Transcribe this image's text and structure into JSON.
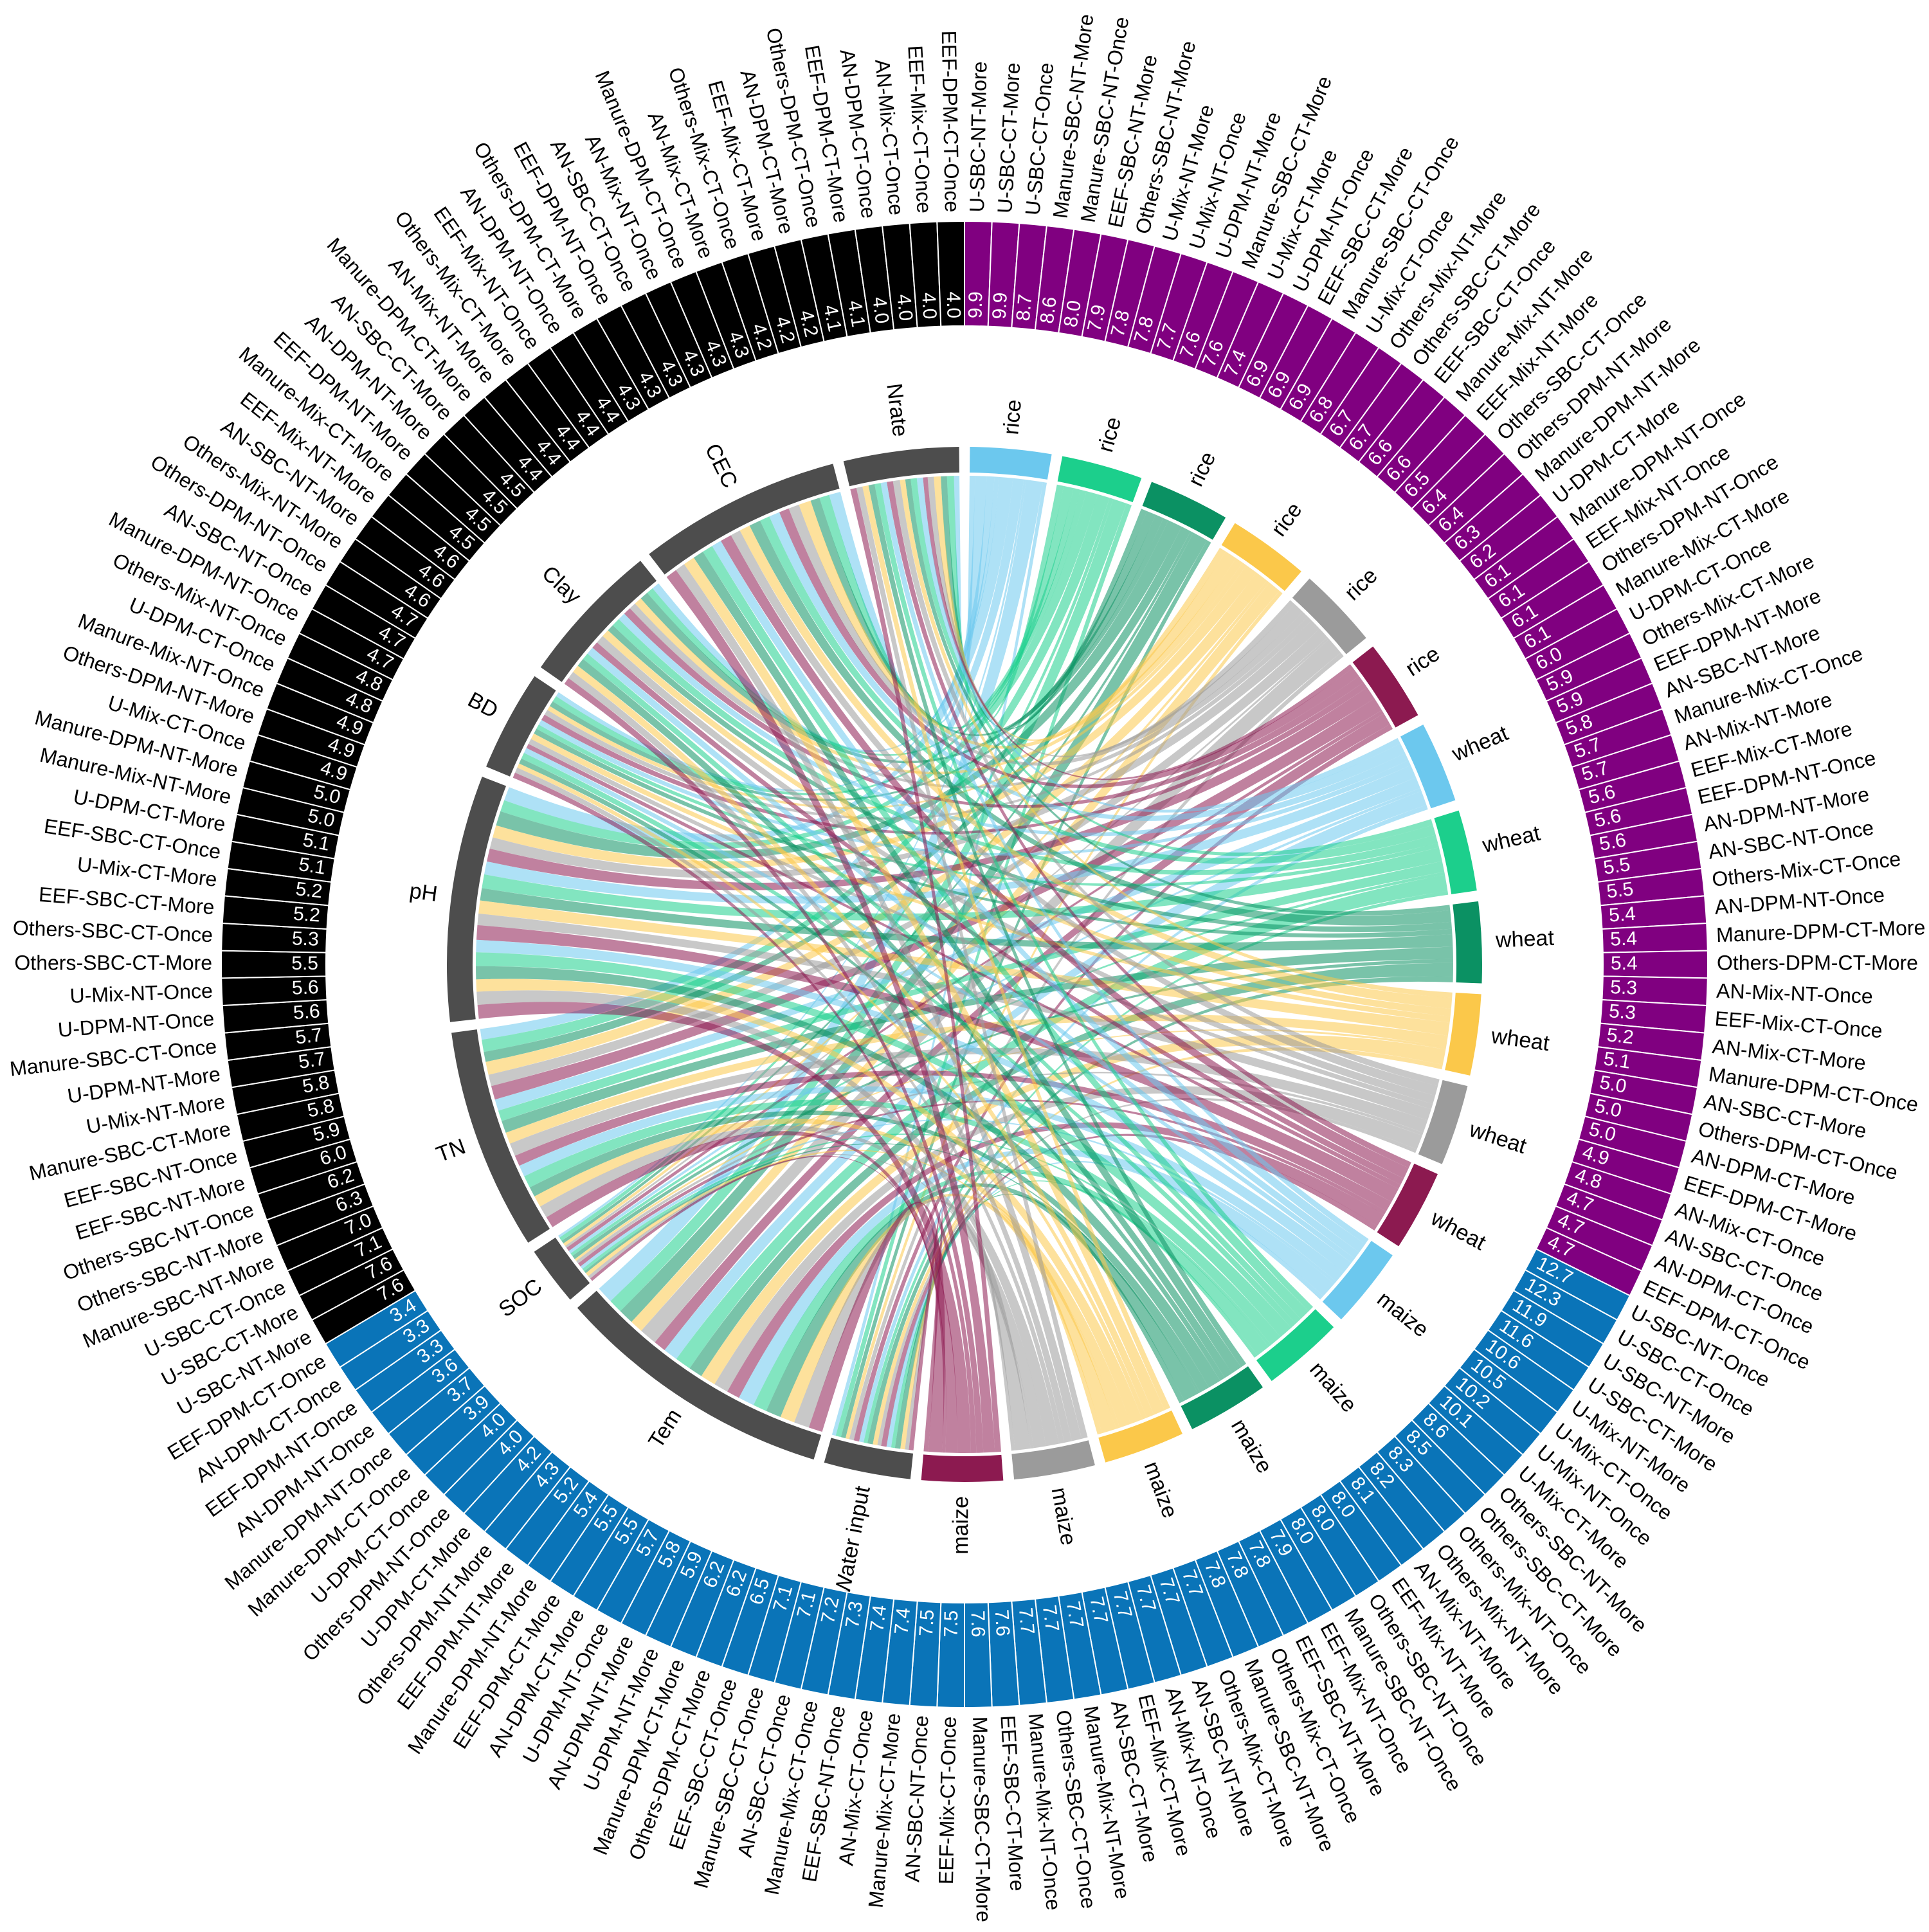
{
  "chart_data": {
    "type": "chord",
    "crops": [
      {
        "name": "rice",
        "color": "#6cc8ee"
      },
      {
        "name": "rice",
        "color": "#1ccf8c"
      },
      {
        "name": "rice",
        "color": "#0b9163"
      },
      {
        "name": "rice",
        "color": "#fbc84a"
      },
      {
        "name": "rice",
        "color": "#9b9b9b"
      },
      {
        "name": "rice",
        "color": "#8c1a50"
      },
      {
        "name": "wheat",
        "color": "#6cc8ee"
      },
      {
        "name": "wheat",
        "color": "#1ccf8c"
      },
      {
        "name": "wheat",
        "color": "#0b9163"
      },
      {
        "name": "wheat",
        "color": "#fbc84a"
      },
      {
        "name": "wheat",
        "color": "#9b9b9b"
      },
      {
        "name": "wheat",
        "color": "#8c1a50"
      },
      {
        "name": "maize",
        "color": "#6cc8ee"
      },
      {
        "name": "maize",
        "color": "#1ccf8c"
      },
      {
        "name": "maize",
        "color": "#0b9163"
      },
      {
        "name": "maize",
        "color": "#fbc84a"
      },
      {
        "name": "maize",
        "color": "#9b9b9b"
      },
      {
        "name": "maize",
        "color": "#8c1a50"
      }
    ],
    "factors": [
      "Water input",
      "Tem",
      "SOC",
      "TN",
      "pH",
      "BD",
      "Clay",
      "CEC",
      "Nrate"
    ],
    "factor_color": "#4d4d4d",
    "flows": [
      [
        0.5,
        2.2,
        0.3,
        1.4,
        1.8,
        0.6,
        1.0,
        1.5,
        0.7
      ],
      [
        0.7,
        1.8,
        0.5,
        1.6,
        1.5,
        0.8,
        0.9,
        1.3,
        0.9
      ],
      [
        0.6,
        2.0,
        0.4,
        1.3,
        1.9,
        0.7,
        1.1,
        1.2,
        0.8
      ],
      [
        0.5,
        1.7,
        0.4,
        1.7,
        1.6,
        0.6,
        1.0,
        1.6,
        0.9
      ],
      [
        0.6,
        2.3,
        0.3,
        1.5,
        1.5,
        0.7,
        0.9,
        1.4,
        0.8
      ],
      [
        0.7,
        1.6,
        0.5,
        1.8,
        1.7,
        0.8,
        1.0,
        1.3,
        0.6
      ],
      [
        0.6,
        1.9,
        0.4,
        1.5,
        1.7,
        0.7,
        1.0,
        1.4,
        0.8
      ],
      [
        0.5,
        2.1,
        0.4,
        1.4,
        1.8,
        0.6,
        1.1,
        1.3,
        0.8
      ],
      [
        0.7,
        1.8,
        0.5,
        1.6,
        1.6,
        0.7,
        0.9,
        1.5,
        0.7
      ],
      [
        0.6,
        2.0,
        0.3,
        1.5,
        1.7,
        0.8,
        1.0,
        1.4,
        0.7
      ],
      [
        0.5,
        1.9,
        0.4,
        1.7,
        1.5,
        0.7,
        1.1,
        1.3,
        0.9
      ],
      [
        0.7,
        1.7,
        0.5,
        1.4,
        1.9,
        0.6,
        0.9,
        1.5,
        0.8
      ],
      [
        0.6,
        2.1,
        0.4,
        1.5,
        1.6,
        0.7,
        1.0,
        1.3,
        0.8
      ],
      [
        0.5,
        1.8,
        0.4,
        1.6,
        1.8,
        0.8,
        0.9,
        1.4,
        0.8
      ],
      [
        0.7,
        2.0,
        0.3,
        1.3,
        1.7,
        0.7,
        1.1,
        1.4,
        0.8
      ],
      [
        0.6,
        1.9,
        0.5,
        1.5,
        1.6,
        0.6,
        1.0,
        1.5,
        0.8
      ],
      [
        0.5,
        2.0,
        0.4,
        1.6,
        1.7,
        0.7,
        1.0,
        1.3,
        0.8
      ],
      [
        0.6,
        1.8,
        0.4,
        1.5,
        1.8,
        0.7,
        0.9,
        1.5,
        0.8
      ]
    ],
    "ring": [
      {
        "color": "#800080",
        "labels": [
          "U-SBC-NT-More",
          "U-SBC-CT-More",
          "U-SBC-CT-Once",
          "Manure-SBC-NT-More",
          "Manure-SBC-NT-Once",
          "EEF-SBC-NT-More",
          "Others-SBC-NT-More",
          "U-Mix-NT-More",
          "U-Mix-NT-Once",
          "U-DPM-NT-More",
          "Manure-SBC-CT-More",
          "U-Mix-CT-More",
          "U-DPM-NT-Once",
          "EEF-SBC-CT-More",
          "Manure-SBC-CT-Once",
          "U-Mix-CT-Once",
          "Others-Mix-NT-More",
          "Others-SBC-CT-More",
          "EEF-SBC-CT-Once",
          "Manure-Mix-NT-More",
          "EEF-Mix-NT-More",
          "Others-SBC-CT-Once",
          "Others-DPM-NT-More",
          "Manure-DPM-NT-More",
          "U-DPM-CT-More",
          "Manure-DPM-NT-Once",
          "EEF-Mix-NT-Once",
          "Others-DPM-NT-Once",
          "Manure-Mix-CT-More",
          "U-DPM-CT-Once",
          "Others-Mix-CT-More",
          "EEF-DPM-NT-More",
          "AN-SBC-NT-More",
          "Manure-Mix-CT-Once",
          "AN-Mix-NT-More",
          "EEF-Mix-CT-More",
          "EEF-DPM-NT-Once",
          "AN-DPM-NT-More",
          "AN-SBC-NT-Once",
          "Others-Mix-CT-Once",
          "AN-DPM-NT-Once",
          "Manure-DPM-CT-More",
          "Others-DPM-CT-More",
          "AN-Mix-NT-Once",
          "EEF-Mix-CT-Once",
          "AN-Mix-CT-More",
          "Manure-DPM-CT-Once",
          "AN-SBC-CT-More",
          "Others-DPM-CT-Once",
          "AN-DPM-CT-More",
          "EEF-DPM-CT-More",
          "AN-Mix-CT-Once",
          "AN-SBC-CT-Once",
          "AN-DPM-CT-Once",
          "EEF-DPM-CT-Once"
        ],
        "values": [
          9.9,
          9.9,
          8.7,
          8.6,
          8.0,
          7.9,
          7.8,
          7.8,
          7.7,
          7.6,
          7.6,
          7.4,
          6.9,
          6.9,
          6.9,
          6.8,
          6.7,
          6.7,
          6.6,
          6.6,
          6.5,
          6.4,
          6.4,
          6.3,
          6.2,
          6.1,
          6.1,
          6.1,
          6.1,
          6.0,
          5.9,
          5.9,
          5.8,
          5.7,
          5.7,
          5.6,
          5.6,
          5.6,
          5.5,
          5.5,
          5.4,
          5.4,
          5.4,
          5.3,
          5.3,
          5.2,
          5.1,
          5.0,
          5.0,
          5.0,
          4.9,
          4.8,
          4.7,
          4.7,
          4.7
        ],
        "value_labels": [
          "9.9",
          "9.9",
          "8.7",
          "8.6",
          "8.0",
          "7.9",
          "7.8",
          "7.8",
          "7.7",
          "7.6",
          "7.6",
          "7.4",
          "6.9",
          "6.9",
          "6.9",
          "6.8",
          "6.7",
          "6.7",
          "6.6",
          "6.6",
          "6.5",
          "6.4",
          "6.4",
          "6.3",
          "6.2",
          "6.1",
          "6.1",
          "6.1",
          "6.1",
          "6.0",
          "5.9",
          "5.9",
          "5.8",
          "5.7",
          "5.7",
          "5.6",
          "5.6",
          "5.6",
          "5.5",
          "5.5",
          "5.4",
          "5.4",
          "5.4",
          "5.3",
          "5.3",
          "5.2",
          "5.1",
          "5.0",
          "5.0",
          "5.0",
          "4.9",
          "4.8",
          "4.7",
          "4.7",
          "4.7"
        ]
      },
      {
        "color": "#0a74b8",
        "labels": [
          "U-SBC-NT-Once",
          "U-SBC-CT-Once",
          "U-SBC-NT-More",
          "U-SBC-CT-More",
          "U-Mix-NT-More",
          "U-Mix-CT-Once",
          "U-Mix-NT-Once",
          "U-Mix-CT-More",
          "Others-SBC-NT-More",
          "Others-SBC-CT-More",
          "Others-Mix-NT-Once",
          "Others-Mix-NT-More",
          "AN-Mix-NT-More",
          "EEF-Mix-NT-More",
          "Others-SBC-NT-Once",
          "Manure-SBC-NT-Once",
          "EEF-Mix-NT-Once",
          "EEF-SBC-NT-More",
          "Others-Mix-CT-Once",
          "Manure-SBC-NT-More",
          "Others-Mix-CT-More",
          "AN-SBC-NT-More",
          "AN-Mix-NT-Once",
          "EEF-Mix-CT-More",
          "AN-SBC-CT-More",
          "Manure-Mix-NT-More",
          "Others-SBC-CT-Once",
          "Manure-Mix-NT-Once",
          "EEF-SBC-CT-More",
          "Manure-SBC-CT-More",
          "EEF-Mix-CT-Once",
          "AN-SBC-NT-Once",
          "Manure-Mix-CT-More",
          "AN-Mix-CT-Once",
          "EEF-SBC-NT-Once",
          "Manure-Mix-CT-Once",
          "AN-SBC-CT-Once",
          "Manure-SBC-CT-Once",
          "EEF-SBC-CT-Once",
          "Others-DPM-CT-More",
          "Manure-DPM-CT-More",
          "U-DPM-NT-More",
          "AN-DPM-NT-More",
          "U-DPM-NT-Once",
          "AN-DPM-CT-More",
          "EEF-DPM-CT-More",
          "Manure-DPM-NT-More",
          "EEF-DPM-NT-More",
          "Others-DPM-NT-More",
          "U-DPM-CT-More",
          "Others-DPM-NT-Once",
          "U-DPM-CT-Once",
          "Manure-DPM-CT-Once",
          "Manure-DPM-NT-Once",
          "AN-DPM-NT-Once",
          "EEF-DPM-NT-Once",
          "AN-DPM-CT-Once",
          "EEF-DPM-CT-Once"
        ],
        "values": [
          12.7,
          12.3,
          11.9,
          11.6,
          10.6,
          10.5,
          10.2,
          10.1,
          8.6,
          8.5,
          8.3,
          8.2,
          8.1,
          8.0,
          8.0,
          8.0,
          7.9,
          7.8,
          7.8,
          7.8,
          7.7,
          7.7,
          7.7,
          7.7,
          7.7,
          7.7,
          7.7,
          7.7,
          7.6,
          7.6,
          7.5,
          7.5,
          7.4,
          7.4,
          7.3,
          7.2,
          7.1,
          7.1,
          6.5,
          6.2,
          6.2,
          5.9,
          5.8,
          5.7,
          5.5,
          5.5,
          5.4,
          5.2,
          4.3,
          4.2,
          4.0,
          4.0,
          3.9,
          3.7,
          3.6,
          3.3,
          3.3,
          3.4
        ],
        "value_labels": [
          "12.7",
          "12.3",
          "11.9",
          "11.6",
          "10.6",
          "10.5",
          "10.2",
          "10.1",
          "8.6",
          "8.5",
          "8.3",
          "8.2",
          "8.1",
          "8.0",
          "8.0",
          "8.0",
          "7.9",
          "7.8",
          "7.8",
          "7.8",
          "7.7",
          "7.7",
          "7.7",
          "7.7",
          "7.7",
          "7.7",
          "7.7",
          "7.7",
          "7.6",
          "7.6",
          "7.5",
          "7.5",
          "7.4",
          "7.4",
          "7.3",
          "7.2",
          "7.1",
          "7.1",
          "6.5",
          "6.2",
          "6.2",
          "5.9",
          "5.8",
          "5.7",
          "5.5",
          "5.5",
          "5.4",
          "5.2",
          "4.3",
          "4.2",
          "4.0",
          "4.0",
          "3.9",
          "3.7",
          "3.6",
          "3.3",
          "3.3",
          "3.4"
        ]
      },
      {
        "color": "#000000",
        "labels": [
          "U-SBC-NT-More",
          "U-SBC-CT-More",
          "U-SBC-CT-Once",
          "Manure-SBC-NT-More",
          "Others-SBC-NT-More",
          "Others-SBC-NT-Once",
          "EEF-SBC-NT-More",
          "EEF-SBC-NT-Once",
          "Manure-SBC-CT-More",
          "U-Mix-NT-More",
          "U-DPM-NT-More",
          "Manure-SBC-CT-Once",
          "U-DPM-NT-Once",
          "U-Mix-NT-Once",
          "Others-SBC-CT-More",
          "Others-SBC-CT-Once",
          "EEF-SBC-CT-More",
          "U-Mix-CT-More",
          "EEF-SBC-CT-Once",
          "U-DPM-CT-More",
          "Manure-Mix-NT-More",
          "Manure-DPM-NT-More",
          "U-Mix-CT-Once",
          "Others-DPM-NT-More",
          "Manure-Mix-NT-Once",
          "U-DPM-CT-Once",
          "Others-Mix-NT-Once",
          "Manure-DPM-NT-Once",
          "AN-SBC-NT-Once",
          "Others-DPM-NT-Once",
          "Others-Mix-NT-More",
          "AN-SBC-NT-More",
          "EEF-Mix-NT-More",
          "Manure-Mix-CT-More",
          "EEF-DPM-NT-More",
          "AN-DPM-NT-More",
          "AN-SBC-CT-More",
          "Manure-DPM-CT-More",
          "AN-Mix-NT-More",
          "Others-Mix-CT-More",
          "EEF-Mix-NT-Once",
          "AN-DPM-NT-Once",
          "Others-DPM-CT-More",
          "EEF-DPM-NT-Once",
          "AN-SBC-CT-Once",
          "AN-Mix-NT-Once",
          "Manure-DPM-CT-Once",
          "AN-Mix-CT-More",
          "Others-Mix-CT-Once",
          "EEF-Mix-CT-More",
          "AN-DPM-CT-More",
          "Others-DPM-CT-Once",
          "EEF-DPM-CT-More",
          "AN-DPM-CT-Once",
          "AN-Mix-CT-Once",
          "EEF-Mix-CT-Once",
          "EEF-DPM-CT-Once"
        ],
        "values": [
          7.6,
          7.6,
          7.1,
          7.0,
          6.3,
          6.2,
          6.0,
          5.9,
          5.8,
          5.8,
          5.7,
          5.7,
          5.6,
          5.6,
          5.5,
          5.3,
          5.2,
          5.2,
          5.1,
          5.1,
          5.0,
          5.0,
          4.9,
          4.9,
          4.9,
          4.8,
          4.8,
          4.7,
          4.7,
          4.7,
          4.6,
          4.6,
          4.6,
          4.5,
          4.5,
          4.5,
          4.5,
          4.4,
          4.4,
          4.4,
          4.4,
          4.4,
          4.3,
          4.3,
          4.3,
          4.3,
          4.3,
          4.3,
          4.2,
          4.2,
          4.2,
          4.1,
          4.1,
          4.0,
          4.0,
          4.0,
          4.0
        ],
        "value_labels": [
          "7.6",
          "7.6",
          "7.1",
          "7.0",
          "6.3",
          "6.2",
          "6.0",
          "5.9",
          "5.8",
          "5.8",
          "5.7",
          "5.7",
          "5.6",
          "5.6",
          "5.5",
          "5.3",
          "5.2",
          "5.2",
          "5.1",
          "5.1",
          "5.0",
          "5.0",
          "4.9",
          "4.9",
          "4.9",
          "4.8",
          "4.8",
          "4.7",
          "4.7",
          "4.7",
          "4.6",
          "4.6",
          "4.6",
          "4.5",
          "4.5",
          "4.5",
          "4.5",
          "4.4",
          "4.4",
          "4.4",
          "4.4",
          "4.4",
          "4.3",
          "4.3",
          "4.3",
          "4.3",
          "4.3",
          "4.3",
          "4.2",
          "4.2",
          "4.2",
          "4.1",
          "4.1",
          "4.0",
          "4.0",
          "4.0",
          "4.0"
        ]
      }
    ]
  }
}
